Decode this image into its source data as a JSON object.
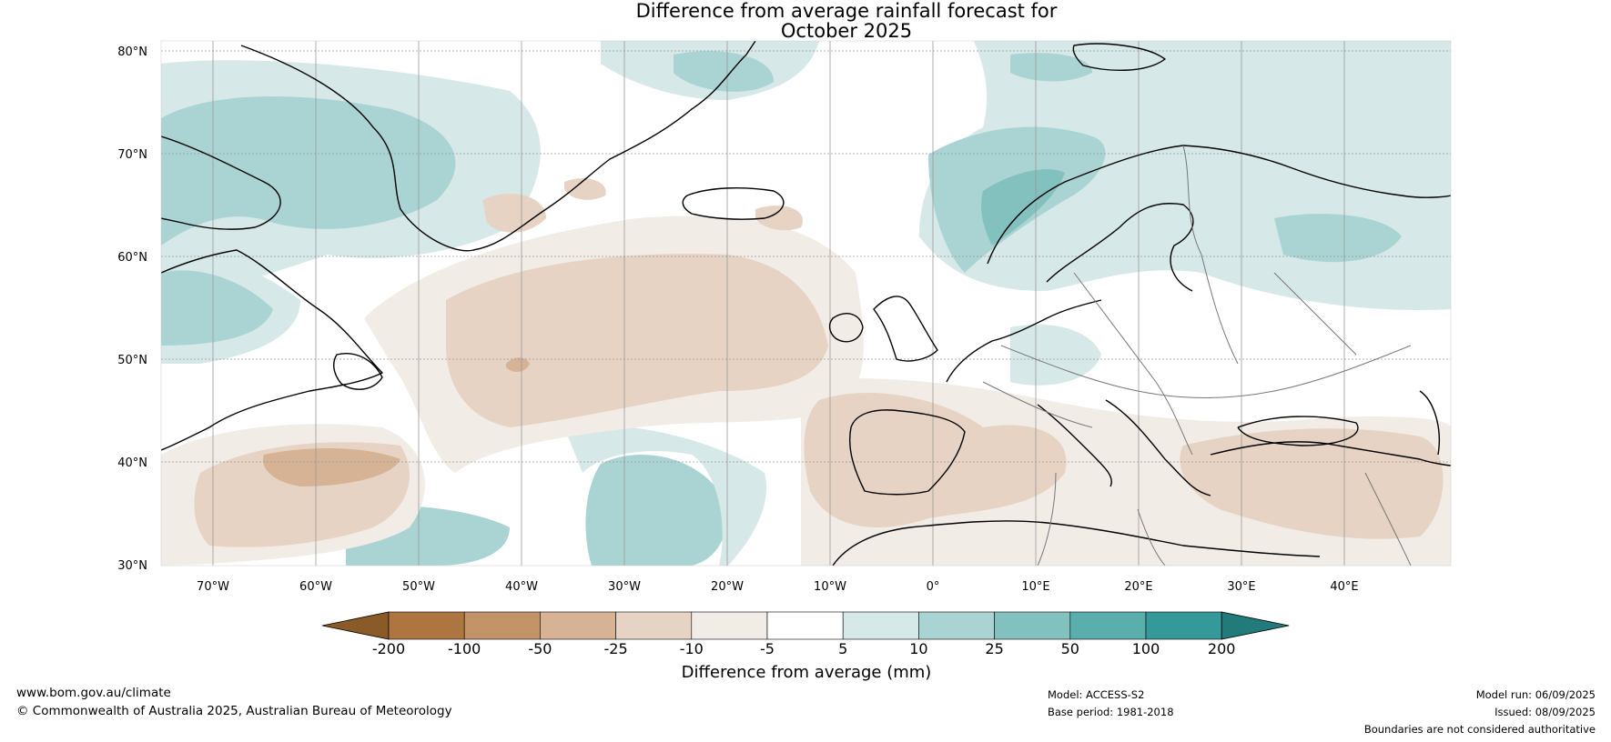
{
  "title": {
    "line1": "Difference from average rainfall forecast for",
    "line2": "October 2025"
  },
  "map": {
    "lat_labels": [
      "80°N",
      "70°N",
      "60°N",
      "50°N",
      "40°N",
      "30°N"
    ],
    "lon_labels": [
      "70°W",
      "60°W",
      "50°W",
      "40°W",
      "30°W",
      "20°W",
      "10°W",
      "0°",
      "10°E",
      "20°E",
      "30°E",
      "40°E"
    ],
    "lat_range": [
      30,
      81
    ],
    "lon_range": [
      -75,
      50
    ]
  },
  "legend": {
    "title": "Difference from average (mm)",
    "ticks": [
      "-200",
      "-100",
      "-50",
      "-25",
      "-10",
      "-5",
      "5",
      "10",
      "25",
      "50",
      "100",
      "200"
    ],
    "colors": [
      "#8a5a28",
      "#ad753f",
      "#c39468",
      "#d5b394",
      "#e6d3c3",
      "#f2ece6",
      "#ffffff",
      "#d6e8e7",
      "#a9d4d3",
      "#82c1be",
      "#5aaeab",
      "#35999a",
      "#237a7a"
    ]
  },
  "footer": {
    "website": "www.bom.gov.au/climate",
    "copyright": "© Commonwealth of Australia 2025, Australian Bureau of Meteorology",
    "model": "Model: ACCESS-S2",
    "base_period": "Base period: 1981-2018",
    "model_run": "Model run: 06/09/2025",
    "issued": "Issued: 08/09/2025",
    "disclaimer": "Boundaries are not considered authoritative"
  }
}
